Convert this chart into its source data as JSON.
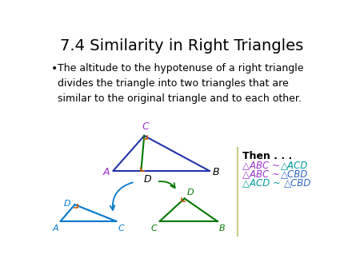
{
  "title": "7.4 Similarity in Right Triangles",
  "bullet_text": "The altitude to the hypotenuse of a right triangle\ndivides the triangle into two triangles that are\nsimilar to the original triangle and to each other.",
  "then_label": "Then . . .",
  "sim1_left": "△ABC ~ ",
  "sim1_right": "△ACD",
  "sim2_left": "△ABC ~ ",
  "sim2_right": "△CBD",
  "sim3_left": "△ACD ~ ",
  "sim3_right": "△CBD",
  "bg_color": "#ffffff",
  "title_color": "#000000",
  "bullet_color": "#000000",
  "then_color": "#000000",
  "main_tri_color": "#2233aa",
  "altitude_color": "#007700",
  "left_tri_color": "#0077cc",
  "right_tri_color": "#007700",
  "right_angle_color": "#cc5500",
  "label_C_color": "#9933cc",
  "label_A_color": "#9933cc",
  "label_B_color": "#000000",
  "label_D_color": "#000000",
  "sim_purple": "#9933cc",
  "sim_teal": "#009999",
  "sim_blue": "#3366cc"
}
